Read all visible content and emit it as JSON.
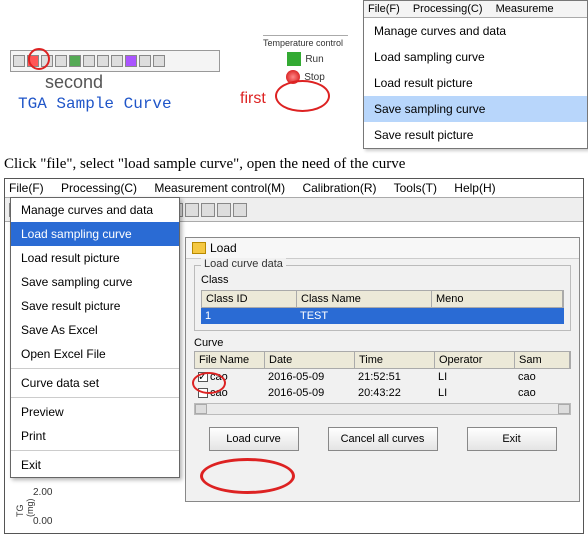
{
  "colors": {
    "highlight_blue": "#b8d6fb",
    "sel_blue": "#2a6bd4",
    "red": "#d22"
  },
  "top": {
    "second": "second",
    "tga": "TGA Sample Curve",
    "first": "first",
    "temp_label": "Temperature control",
    "run": "Run",
    "stop": "Stop"
  },
  "menu1": {
    "bar": [
      "File(F)",
      "Processing(C)",
      "Measureme"
    ],
    "items": [
      "Manage curves and data",
      "Load sampling curve",
      "Load result picture",
      "Save sampling curve",
      "Save result picture"
    ],
    "highlight_index": 3
  },
  "instruction": "Click \"file\", select \"load sample curve\", open the need of the curve",
  "menubar2": [
    "File(F)",
    "Processing(C)",
    "Measurement control(M)",
    "Calibration(R)",
    "Tools(T)",
    "Help(H)"
  ],
  "file_menu2": {
    "items": [
      "Manage curves and data",
      "Load sampling curve",
      "Load result picture",
      "Save sampling curve",
      "Save result picture",
      "Save As Excel",
      "Open Excel File",
      "-",
      "Curve data set",
      "-",
      "Preview",
      "Print",
      "-",
      "Exit"
    ],
    "highlight_index": 1
  },
  "dialog": {
    "title": "Load",
    "class_fieldset": "Load curve data",
    "class_label": "Class",
    "class_cols": [
      "Class ID",
      "Class Name",
      "Meno"
    ],
    "class_row": [
      "1",
      "TEST",
      ""
    ],
    "curve_label": "Curve",
    "curve_cols": [
      "File Name",
      "Date",
      "Time",
      "Operator",
      "Sam"
    ],
    "curve_rows": [
      {
        "checked": true,
        "name": "cao",
        "date": "2016-05-09",
        "time": "21:52:51",
        "op": "LI",
        "sam": "cao"
      },
      {
        "checked": false,
        "name": "cao",
        "date": "2016-05-09",
        "time": "20:43:22",
        "op": "LI",
        "sam": "cao"
      }
    ],
    "buttons": [
      "Load curve",
      "Cancel all curves",
      "Exit"
    ]
  },
  "axis": {
    "ylabel": "TG (mg)",
    "t0": "0.00",
    "t1": "2.00"
  }
}
